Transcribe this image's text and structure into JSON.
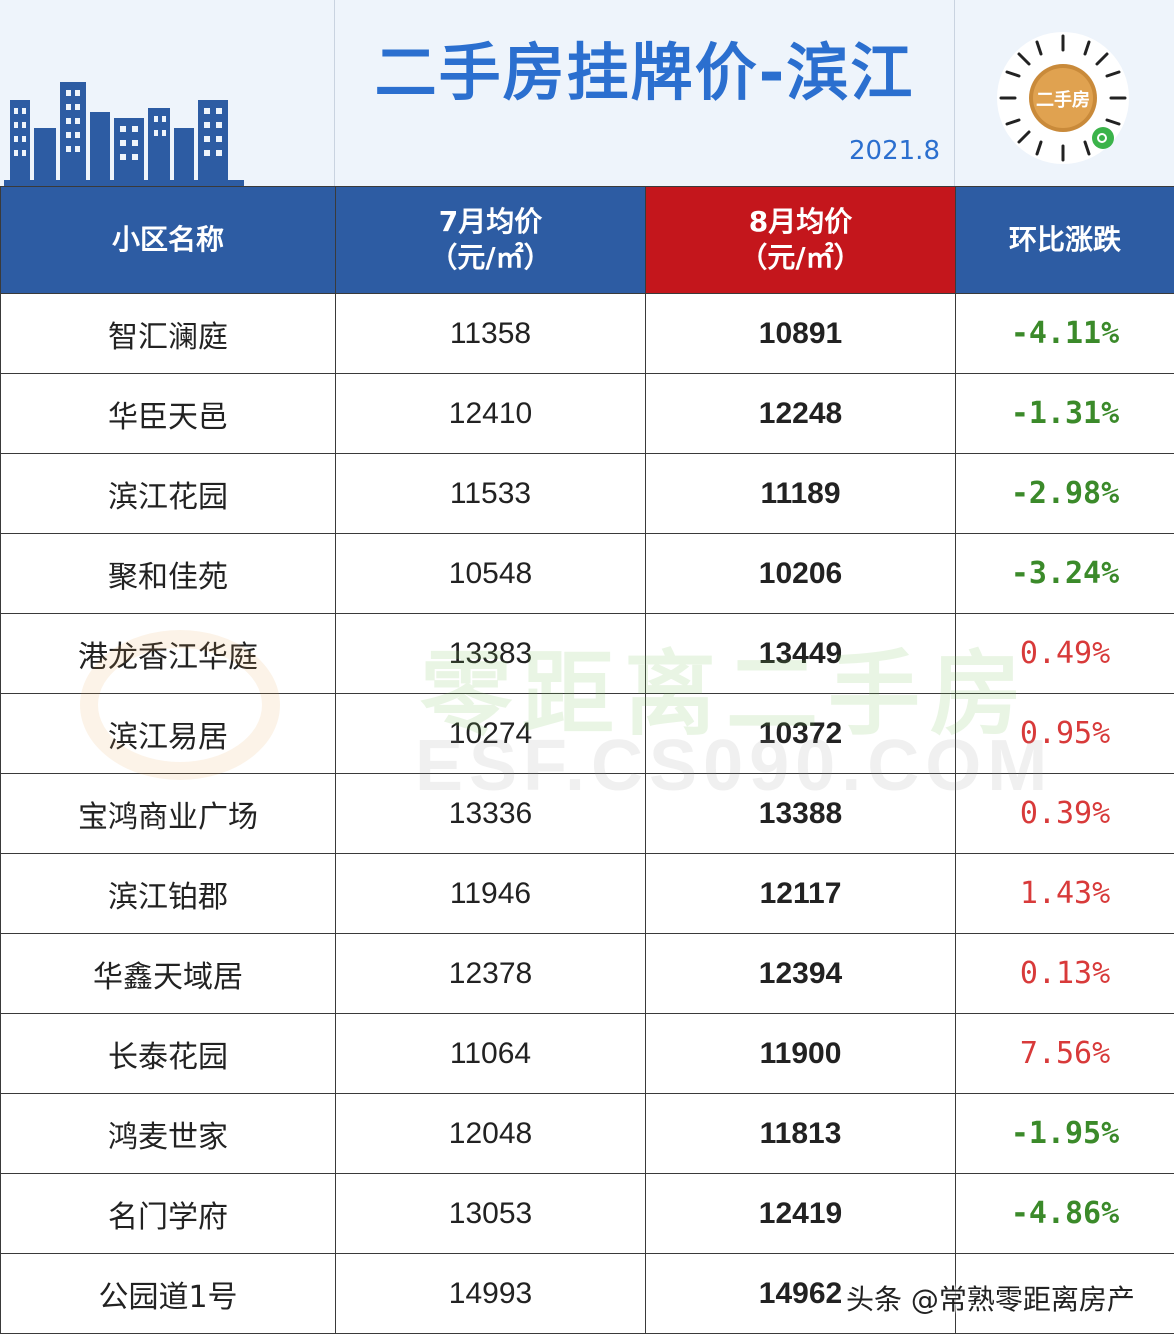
{
  "header": {
    "title": "二手房挂牌价-滨江",
    "date": "2021.8",
    "qr_label": "二手房"
  },
  "table": {
    "columns": [
      "小区名称",
      "7月均价\n（元/㎡）",
      "8月均价\n（元/㎡）",
      "环比涨跌"
    ],
    "rows": [
      {
        "name": "智汇澜庭",
        "jul": "11358",
        "aug": "10891",
        "change": "-4.11%",
        "dir": "neg"
      },
      {
        "name": "华臣天邑",
        "jul": "12410",
        "aug": "12248",
        "change": "-1.31%",
        "dir": "neg"
      },
      {
        "name": "滨江花园",
        "jul": "11533",
        "aug": "11189",
        "change": "-2.98%",
        "dir": "neg"
      },
      {
        "name": "聚和佳苑",
        "jul": "10548",
        "aug": "10206",
        "change": "-3.24%",
        "dir": "neg"
      },
      {
        "name": "港龙香江华庭",
        "jul": "13383",
        "aug": "13449",
        "change": "0.49%",
        "dir": "pos"
      },
      {
        "name": "滨江易居",
        "jul": "10274",
        "aug": "10372",
        "change": "0.95%",
        "dir": "pos"
      },
      {
        "name": "宝鸿商业广场",
        "jul": "13336",
        "aug": "13388",
        "change": "0.39%",
        "dir": "pos"
      },
      {
        "name": "滨江铂郡",
        "jul": "11946",
        "aug": "12117",
        "change": "1.43%",
        "dir": "pos"
      },
      {
        "name": "华鑫天域居",
        "jul": "12378",
        "aug": "12394",
        "change": "0.13%",
        "dir": "pos"
      },
      {
        "name": "长泰花园",
        "jul": "11064",
        "aug": "11900",
        "change": "7.56%",
        "dir": "pos"
      },
      {
        "name": "鸿麦世家",
        "jul": "12048",
        "aug": "11813",
        "change": "-1.95%",
        "dir": "neg"
      },
      {
        "name": "名门学府",
        "jul": "13053",
        "aug": "12419",
        "change": "-4.86%",
        "dir": "neg"
      },
      {
        "name": "公园道1号",
        "jul": "14993",
        "aug": "14962",
        "change": "",
        "dir": "neg"
      }
    ]
  },
  "watermark": {
    "brand": "零距离二手房",
    "url": "ESF.CS090.COM"
  },
  "credit": "头条 @常熟零距离房产",
  "colors": {
    "header_blue": "#2d5ca3",
    "highlight_red": "#c4161c",
    "title_blue": "#2b6fcf",
    "down_green": "#3b8a2a",
    "up_red": "#d83a3a"
  }
}
